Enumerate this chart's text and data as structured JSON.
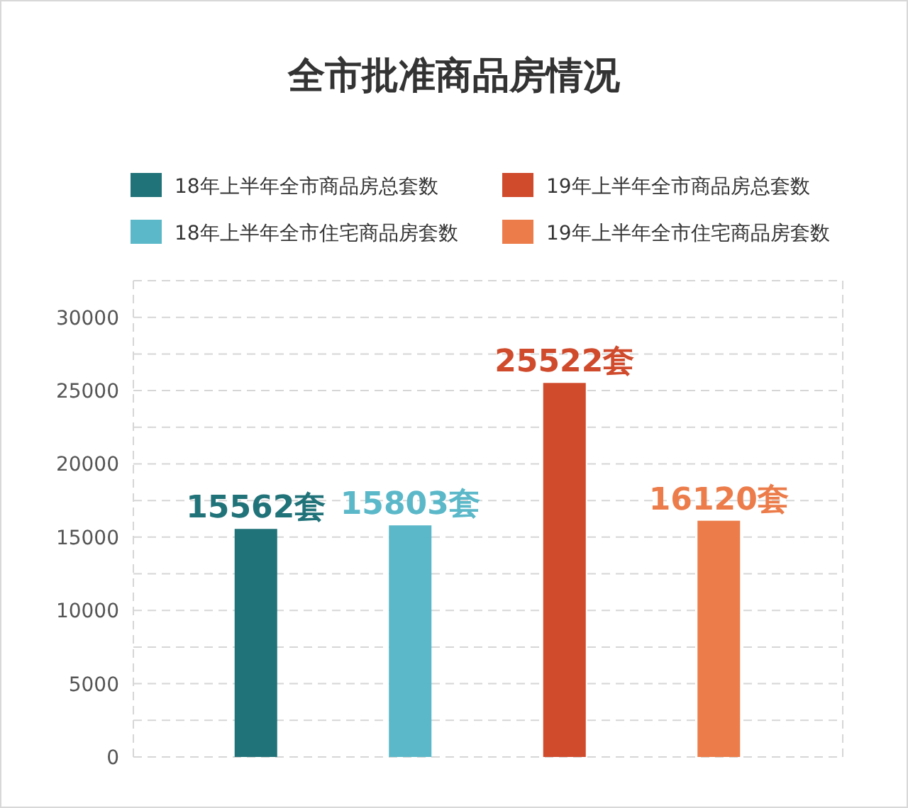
{
  "chart_data": {
    "type": "bar",
    "title": "全市批准商品房情况",
    "categories": [
      null,
      null,
      null,
      null
    ],
    "series": [
      {
        "name": "18年上半年全市商品房总套数",
        "color": "#21737a",
        "values": [
          15562,
          null,
          null,
          null
        ],
        "value_labels": [
          "15562套",
          null,
          null,
          null
        ]
      },
      {
        "name": "18年上半年全市住宅商品房套数",
        "color": "#5bb8c9",
        "values": [
          null,
          15803,
          null,
          null
        ],
        "value_labels": [
          null,
          "15803套",
          null,
          null
        ]
      },
      {
        "name": "19年上半年全市商品房总套数",
        "color": "#d04a2c",
        "values": [
          null,
          null,
          25522,
          null
        ],
        "value_labels": [
          null,
          null,
          "25522套",
          null
        ]
      },
      {
        "name": "19年上半年全市住宅商品房套数",
        "color": "#ec7c4a",
        "values": [
          null,
          null,
          null,
          16120
        ],
        "value_labels": [
          null,
          null,
          null,
          "16120套"
        ]
      }
    ],
    "ylim": [
      0,
      32500
    ],
    "yticks": [
      0,
      {
        "value": 2500,
        "label": null
      },
      5000,
      {
        "value": 7500,
        "label": null
      },
      10000,
      {
        "value": 12500,
        "label": null
      },
      15000,
      {
        "value": 17500,
        "label": null
      },
      20000,
      {
        "value": 22500,
        "label": null
      },
      25000,
      {
        "value": 27500,
        "label": null
      },
      30000,
      {
        "value": 32500,
        "label": null
      }
    ],
    "grid": "y",
    "legend": "top"
  }
}
